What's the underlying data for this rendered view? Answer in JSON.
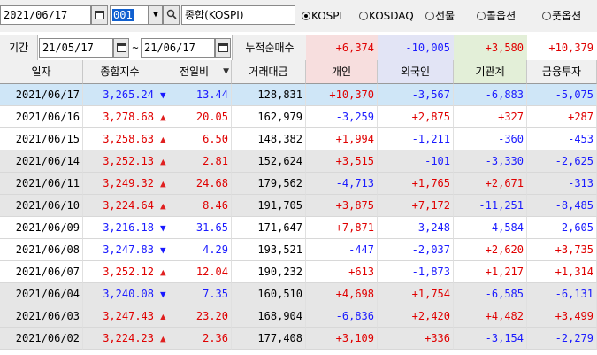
{
  "toolbar": {
    "date": "2021/06/17",
    "code": "001",
    "market_name": "종합(KOSPI)",
    "radios": [
      {
        "label": "KOSPI",
        "selected": true
      },
      {
        "label": "KOSDAQ",
        "selected": false
      },
      {
        "label": "선물",
        "selected": false
      },
      {
        "label": "콜옵션",
        "selected": false
      },
      {
        "label": "풋옵션",
        "selected": false
      }
    ]
  },
  "period": {
    "label": "기간",
    "from": "21/05/17",
    "tilde": "~",
    "to": "21/06/17",
    "summary_label": "누적순매수",
    "sums": [
      "+6,374",
      "-10,005",
      "+3,580",
      "+10,379"
    ]
  },
  "headers": [
    "일자",
    "종합지수",
    "전일비",
    "거래대금",
    "개인",
    "외국인",
    "기관계",
    "금융투자"
  ],
  "rows": [
    {
      "date": "2021/06/17",
      "index": "3,265.24",
      "dir": "down",
      "change": "13.44",
      "volume": "128,831",
      "ind": "+10,370",
      "frg": "-3,567",
      "inst": "-6,883",
      "fin": "-5,075"
    },
    {
      "date": "2021/06/16",
      "index": "3,278.68",
      "dir": "up",
      "change": "20.05",
      "volume": "162,979",
      "ind": "-3,259",
      "frg": "+2,875",
      "inst": "+327",
      "fin": "+287"
    },
    {
      "date": "2021/06/15",
      "index": "3,258.63",
      "dir": "up",
      "change": "6.50",
      "volume": "148,382",
      "ind": "+1,994",
      "frg": "-1,211",
      "inst": "-360",
      "fin": "-453"
    },
    {
      "date": "2021/06/14",
      "index": "3,252.13",
      "dir": "up",
      "change": "2.81",
      "volume": "152,624",
      "ind": "+3,515",
      "frg": "-101",
      "inst": "-3,330",
      "fin": "-2,625"
    },
    {
      "date": "2021/06/11",
      "index": "3,249.32",
      "dir": "up",
      "change": "24.68",
      "volume": "179,562",
      "ind": "-4,713",
      "frg": "+1,765",
      "inst": "+2,671",
      "fin": "-313"
    },
    {
      "date": "2021/06/10",
      "index": "3,224.64",
      "dir": "up",
      "change": "8.46",
      "volume": "191,705",
      "ind": "+3,875",
      "frg": "+7,172",
      "inst": "-11,251",
      "fin": "-8,485"
    },
    {
      "date": "2021/06/09",
      "index": "3,216.18",
      "dir": "down",
      "change": "31.65",
      "volume": "171,647",
      "ind": "+7,871",
      "frg": "-3,248",
      "inst": "-4,584",
      "fin": "-2,605"
    },
    {
      "date": "2021/06/08",
      "index": "3,247.83",
      "dir": "down",
      "change": "4.29",
      "volume": "193,521",
      "ind": "-447",
      "frg": "-2,037",
      "inst": "+2,620",
      "fin": "+3,735"
    },
    {
      "date": "2021/06/07",
      "index": "3,252.12",
      "dir": "up",
      "change": "12.04",
      "volume": "190,232",
      "ind": "+613",
      "frg": "-1,873",
      "inst": "+1,217",
      "fin": "+1,314"
    },
    {
      "date": "2021/06/04",
      "index": "3,240.08",
      "dir": "down",
      "change": "7.35",
      "volume": "160,510",
      "ind": "+4,698",
      "frg": "+1,754",
      "inst": "-6,585",
      "fin": "-6,131"
    },
    {
      "date": "2021/06/03",
      "index": "3,247.43",
      "dir": "up",
      "change": "23.20",
      "volume": "168,904",
      "ind": "-6,836",
      "frg": "+2,420",
      "inst": "+4,482",
      "fin": "+3,499"
    },
    {
      "date": "2021/06/02",
      "index": "3,224.23",
      "dir": "up",
      "change": "2.36",
      "volume": "177,408",
      "ind": "+3,109",
      "frg": "+336",
      "inst": "-3,154",
      "fin": "-2,279"
    }
  ]
}
